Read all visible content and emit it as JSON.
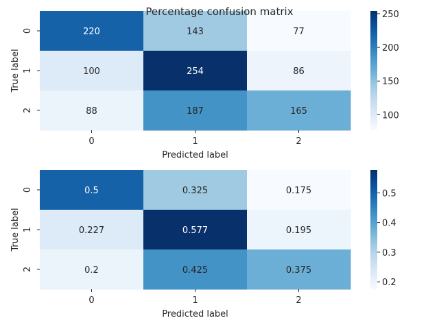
{
  "figure": {
    "title": "Percentage confusion matrix"
  },
  "chart_data": [
    {
      "type": "heatmap",
      "colormap": "Blues",
      "xlabel": "Predicted label",
      "ylabel": "True label",
      "x_categories": [
        "0",
        "1",
        "2"
      ],
      "y_categories": [
        "0",
        "1",
        "2"
      ],
      "values": [
        [
          220,
          143,
          77
        ],
        [
          100,
          254,
          86
        ],
        [
          88,
          187,
          165
        ]
      ],
      "value_labels": [
        [
          "220",
          "143",
          "77"
        ],
        [
          "100",
          "254",
          "86"
        ],
        [
          "88",
          "187",
          "165"
        ]
      ],
      "vmin": 77,
      "vmax": 254,
      "colorbar_ticks": [
        100,
        150,
        200,
        250
      ],
      "colorbar_tick_labels": [
        "100",
        "150",
        "200",
        "250"
      ]
    },
    {
      "type": "heatmap",
      "colormap": "Blues",
      "xlabel": "Predicted label",
      "ylabel": "True label",
      "x_categories": [
        "0",
        "1",
        "2"
      ],
      "y_categories": [
        "0",
        "1",
        "2"
      ],
      "values": [
        [
          0.5,
          0.325,
          0.175
        ],
        [
          0.227,
          0.577,
          0.195
        ],
        [
          0.2,
          0.425,
          0.375
        ]
      ],
      "value_labels": [
        [
          "0.5",
          "0.325",
          "0.175"
        ],
        [
          "0.227",
          "0.577",
          "0.195"
        ],
        [
          "0.2",
          "0.425",
          "0.375"
        ]
      ],
      "vmin": 0.175,
      "vmax": 0.577,
      "colorbar_ticks": [
        0.2,
        0.3,
        0.4,
        0.5
      ],
      "colorbar_tick_labels": [
        "0.2",
        "0.3",
        "0.4",
        "0.5"
      ]
    }
  ]
}
